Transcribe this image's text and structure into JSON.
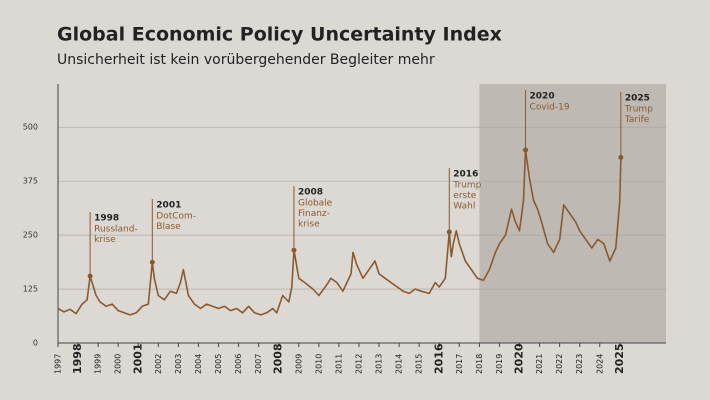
{
  "chart_data": {
    "type": "line",
    "title": "Global Economic Policy Uncertainty Index",
    "subtitle": "Unsicherheit ist kein vorübergehender Begleiter mehr",
    "color": "#8a5a2c",
    "x": [
      1997.0,
      1997.3,
      1997.6,
      1997.9,
      1998.2,
      1998.45,
      1998.6,
      1998.9,
      1999.1,
      1999.4,
      1999.7,
      2000.0,
      2000.3,
      2000.6,
      2000.9,
      2001.2,
      2001.5,
      2001.7,
      2001.8,
      2002.0,
      2002.3,
      2002.6,
      2002.9,
      2003.1,
      2003.25,
      2003.5,
      2003.8,
      2004.1,
      2004.4,
      2004.7,
      2005.0,
      2005.3,
      2005.6,
      2005.9,
      2006.2,
      2006.5,
      2006.8,
      2007.1,
      2007.4,
      2007.7,
      2007.9,
      2008.2,
      2008.5,
      2008.65,
      2008.76,
      2009.0,
      2009.3,
      2009.7,
      2010.0,
      2010.4,
      2010.6,
      2010.9,
      2011.2,
      2011.6,
      2011.7,
      2011.9,
      2012.2,
      2012.5,
      2012.8,
      2013.0,
      2013.3,
      2013.6,
      2013.9,
      2014.2,
      2014.5,
      2014.8,
      2015.1,
      2015.5,
      2015.8,
      2016.0,
      2016.3,
      2016.5,
      2016.6,
      2016.7,
      2016.85,
      2017.0,
      2017.3,
      2017.6,
      2017.9,
      2018.2,
      2018.5,
      2018.8,
      2019.0,
      2019.3,
      2019.6,
      2019.8,
      2020.0,
      2020.2,
      2020.3,
      2020.5,
      2020.7,
      2020.9,
      2021.1,
      2021.4,
      2021.7,
      2022.0,
      2022.2,
      2022.5,
      2022.8,
      2023.0,
      2023.3,
      2023.6,
      2023.9,
      2024.2,
      2024.5,
      2024.8,
      2025.0,
      2025.05
    ],
    "values": [
      80,
      72,
      78,
      68,
      90,
      100,
      155,
      110,
      95,
      85,
      90,
      75,
      70,
      65,
      70,
      85,
      90,
      187,
      150,
      110,
      100,
      120,
      115,
      140,
      170,
      110,
      90,
      80,
      90,
      85,
      80,
      85,
      75,
      80,
      70,
      85,
      70,
      65,
      70,
      80,
      70,
      110,
      95,
      130,
      215,
      150,
      140,
      125,
      110,
      135,
      150,
      140,
      120,
      160,
      210,
      180,
      150,
      170,
      190,
      160,
      150,
      140,
      130,
      120,
      115,
      125,
      120,
      115,
      140,
      130,
      150,
      257,
      200,
      230,
      260,
      230,
      190,
      170,
      150,
      145,
      170,
      210,
      230,
      250,
      310,
      280,
      260,
      330,
      447,
      380,
      330,
      310,
      280,
      230,
      210,
      240,
      320,
      300,
      280,
      260,
      240,
      220,
      240,
      230,
      190,
      220,
      330,
      430
    ],
    "xlim": [
      1997,
      2027.3
    ],
    "ylim": [
      0,
      600
    ],
    "yticks": [
      0,
      125,
      250,
      375,
      500
    ],
    "xticks": [
      1997,
      1998,
      1999,
      2000,
      2001,
      2002,
      2003,
      2004,
      2005,
      2006,
      2007,
      2008,
      2009,
      2010,
      2011,
      2012,
      2013,
      2014,
      2015,
      2016,
      2017,
      2018,
      2019,
      2020,
      2021,
      2022,
      2023,
      2024,
      2025
    ],
    "bold_xticks": [
      1998,
      2001,
      2008,
      2016,
      2020,
      2025
    ],
    "highlight_from": 2018,
    "grid": true,
    "annotations": [
      {
        "x": 1998.6,
        "y": 155,
        "label": "1998",
        "lines": [
          "Russland-",
          "krise"
        ]
      },
      {
        "x": 2001.7,
        "y": 187,
        "label": "2001",
        "lines": [
          "DotCom-",
          "Blase"
        ]
      },
      {
        "x": 2008.76,
        "y": 215,
        "label": "2008",
        "lines": [
          "Globale",
          "Finanz-",
          "krise"
        ]
      },
      {
        "x": 2016.5,
        "y": 257,
        "label": "2016",
        "lines": [
          "Trump",
          "erste",
          "Wahl"
        ]
      },
      {
        "x": 2020.3,
        "y": 447,
        "label": "2020",
        "lines": [
          "Covid-19"
        ]
      },
      {
        "x": 2025.05,
        "y": 430,
        "label": "2025",
        "lines": [
          "Trump",
          "Tarife"
        ]
      }
    ]
  }
}
